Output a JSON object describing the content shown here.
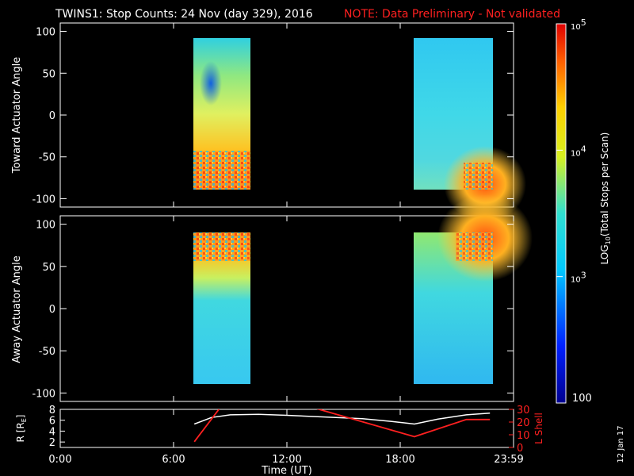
{
  "header": {
    "title": "TWINS1: Stop Counts: 24 Nov (day 329), 2016",
    "note": "NOTE: Data Preliminary - Not validated",
    "note_color": "#ff2020"
  },
  "stamp": "12 Jan 17",
  "chart_data": [
    {
      "type": "heatmap",
      "ylabel": "Toward Actuator Angle",
      "ylim": [
        -110,
        110
      ],
      "yticks": [
        100,
        50,
        0,
        -50,
        -100
      ],
      "xlim": [
        0,
        24
      ],
      "data_intervals_hours": [
        [
          7.1,
          9.85
        ],
        [
          18.75,
          22.75
        ]
      ]
    },
    {
      "type": "heatmap",
      "ylabel": "Away Actuator Angle",
      "ylim": [
        -110,
        110
      ],
      "yticks": [
        100,
        50,
        0,
        -50,
        -100
      ],
      "xlim": [
        0,
        24
      ],
      "data_intervals_hours": [
        [
          7.1,
          9.85
        ],
        [
          18.75,
          22.75
        ]
      ]
    },
    {
      "type": "line",
      "ylabel": "R [R",
      "ylabel_sub": "E",
      "ylabel_end": "]",
      "ylabel_right": "L Shell",
      "ylim": [
        1,
        8
      ],
      "yticks": [
        "8",
        "6",
        "4",
        "2"
      ],
      "ylim_right": [
        0,
        30
      ],
      "yticks_right": [
        "30",
        "20",
        "10",
        "0"
      ],
      "xlabel": "Time (UT)",
      "xticks": [
        "0:00",
        "6:00",
        "12:00",
        "18:00",
        "23:59"
      ],
      "xtick_hours": [
        0,
        6,
        12,
        18,
        24
      ],
      "series": [
        {
          "color": "#ffffff",
          "x": [
            7.1,
            8.0,
            9.0,
            10.5,
            12.0,
            14.0,
            16.0,
            17.5,
            18.75,
            20.0,
            21.5,
            22.75
          ],
          "y": [
            5.3,
            6.5,
            7.0,
            7.1,
            6.9,
            6.6,
            6.3,
            5.8,
            5.3,
            6.2,
            7.0,
            7.3
          ]
        },
        {
          "color": "#ff2020",
          "x": [
            7.1,
            8.5,
            13.0,
            18.75,
            21.5,
            22.75
          ],
          "y": [
            4.5,
            32,
            33,
            8.5,
            22,
            22
          ]
        }
      ]
    }
  ],
  "colorbar": {
    "label_prefix": "LOG",
    "label_sub": "10",
    "label_suffix": "(Total Stops per Scan)",
    "ticks": [
      {
        "base": "10",
        "exp": "5",
        "value": 100000
      },
      {
        "base": "10",
        "exp": "4",
        "value": 10000
      },
      {
        "base": "10",
        "exp": "3",
        "value": 1000
      }
    ],
    "bottom_label": "100",
    "range": [
      100,
      100000
    ],
    "scale": "log"
  }
}
